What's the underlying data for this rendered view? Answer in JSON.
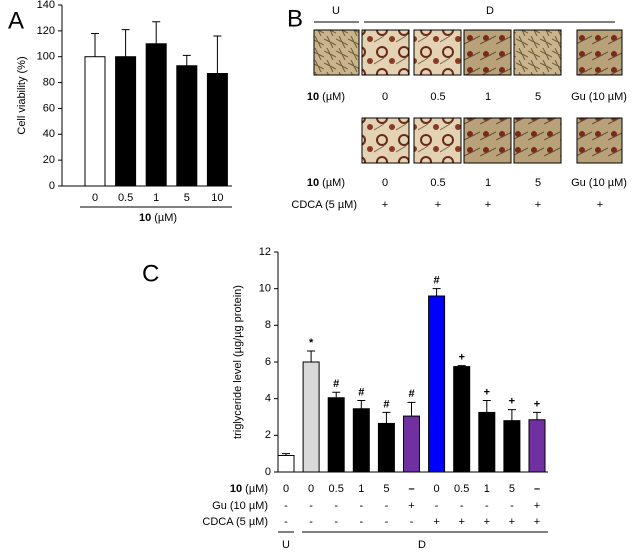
{
  "panel_labels": [
    "A",
    "B",
    "C"
  ],
  "chart_data": [
    {
      "type": "bar",
      "y_label": "Cell viability (%)",
      "x_label_bold": "10",
      "x_label_unit": "(µM)",
      "categories": [
        "0",
        "0.5",
        "1",
        "5",
        "10"
      ],
      "values": [
        100,
        100,
        110,
        93,
        87
      ],
      "errors": [
        18,
        21,
        17,
        8,
        29
      ],
      "colors": [
        "#ffffff",
        "#000000",
        "#000000",
        "#000000",
        "#000000"
      ],
      "ylim": [
        0,
        140
      ],
      "yticks": [
        0,
        20,
        40,
        60,
        80,
        100,
        120,
        140
      ]
    },
    {
      "type": "bar",
      "y_label": "triglyceride level (µg/µg protein)",
      "row_label_bold": "10",
      "row_label_unit": "(µM)",
      "categories": [
        "0",
        "0",
        "0.5",
        "1",
        "5",
        "–",
        "0",
        "0.5",
        "1",
        "5",
        "–"
      ],
      "values": [
        0.9,
        6.0,
        4.05,
        3.45,
        2.65,
        3.05,
        9.6,
        5.75,
        3.25,
        2.8,
        2.85
      ],
      "errors": [
        0.1,
        0.6,
        0.3,
        0.45,
        0.6,
        0.75,
        0.4,
        0.05,
        0.65,
        0.6,
        0.4
      ],
      "colors": [
        "#ffffff",
        "#d9d9d9",
        "#000000",
        "#000000",
        "#000000",
        "#7030a0",
        "#0000ff",
        "#000000",
        "#000000",
        "#000000",
        "#7030a0"
      ],
      "significance": [
        null,
        "*",
        "#",
        "#",
        "#",
        "#",
        "#",
        "+",
        "+",
        "+",
        "+"
      ],
      "gu_label": "Gu (10 µM)",
      "gu_color": "#7030a0",
      "gu_row": [
        "-",
        "-",
        "-",
        "-",
        "-",
        "+",
        "-",
        "-",
        "-",
        "-",
        "+"
      ],
      "cdca_label": "CDCA (5 µM)",
      "cdca_color": "#0000ff",
      "cdca_row": [
        "-",
        "-",
        "-",
        "-",
        "-",
        "-",
        "+",
        "+",
        "+",
        "+",
        "+"
      ],
      "group_u": "U",
      "group_d": "D",
      "ylim": [
        0,
        12
      ],
      "yticks": [
        0,
        2,
        4,
        6,
        8,
        10,
        12
      ]
    }
  ],
  "panel_b": {
    "group_u": "U",
    "group_d": "D",
    "row_label_bold": "10",
    "row_label_unit": "(µM)",
    "doses": [
      "0",
      "0.5",
      "1",
      "5"
    ],
    "gu_label": "Gu (10 µM)",
    "gu_color": "#7030a0",
    "cdca_label": "CDCA (5 µM)",
    "cdca_color": "#0000ff",
    "cdca_row": [
      "+",
      "+",
      "+",
      "+",
      "+"
    ]
  }
}
